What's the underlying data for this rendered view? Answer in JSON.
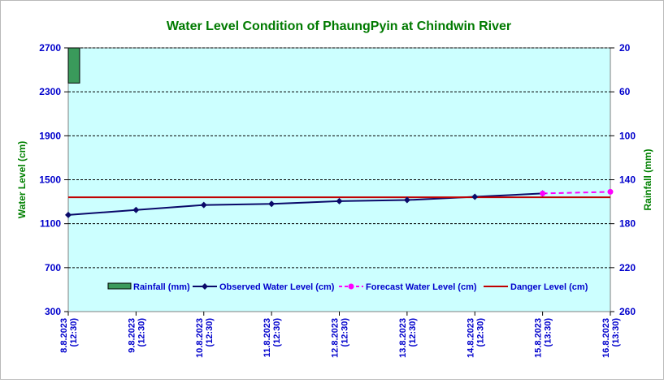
{
  "chart_data": {
    "type": "line",
    "title": "Water Level Condition of PhaungPyin at Chindwin River",
    "ylabel_left": "Water Level (cm)",
    "ylabel_right": "Rainfall (mm)",
    "xlabel": "",
    "ylim_left": [
      300,
      2700
    ],
    "yticks_left": [
      "2700",
      "2300",
      "1900",
      "1500",
      "1100",
      "700",
      "300"
    ],
    "ylim_right": [
      20,
      260
    ],
    "right_axis_inverted": true,
    "yticks_right": [
      "20",
      "60",
      "100",
      "140",
      "180",
      "220",
      "260"
    ],
    "categories": [
      "8.8.2023 (12:30)",
      "9.8.2023 (12:30)",
      "10.8.2023 (12:30)",
      "11.8.2023 (12:30)",
      "12.8.2023 (12:30)",
      "13.8.2023 (12:30)",
      "14.8.2023 (12:30)",
      "15.8.2023 (13:30)",
      "16.8.2023 (13:30)"
    ],
    "x_tick_lines": [
      [
        "8.8.2023",
        "(12:30)"
      ],
      [
        "9.8.2023",
        "(12:30)"
      ],
      [
        "10.8.2023",
        "(12:30)"
      ],
      [
        "11.8.2023",
        "(12:30)"
      ],
      [
        "12.8.2023",
        "(12:30)"
      ],
      [
        "13.8.2023",
        "(12:30)"
      ],
      [
        "14.8.2023",
        "(12:30)"
      ],
      [
        "15.8.2023",
        "(13:30)"
      ],
      [
        "16.8.2023",
        "(13:30)"
      ]
    ],
    "grid": true,
    "legend_position": "bottom-inside",
    "series": [
      {
        "name": "Rainfall (mm)",
        "kind": "bar",
        "axis": "right",
        "color": "#3a9a5b",
        "values": [
          52,
          null,
          null,
          null,
          null,
          null,
          null,
          null,
          null
        ]
      },
      {
        "name": "Observed Water Level (cm)",
        "kind": "line",
        "axis": "left",
        "color": "#0a0a6a",
        "marker": "diamond",
        "values": [
          1180,
          1225,
          1270,
          1280,
          1305,
          1315,
          1345,
          1375,
          null
        ]
      },
      {
        "name": "Forecast Water Level (cm)",
        "kind": "line-dashed",
        "axis": "left",
        "color": "#ff00ff",
        "marker": "circle",
        "values": [
          null,
          null,
          null,
          null,
          null,
          null,
          null,
          1375,
          1390
        ]
      },
      {
        "name": "Danger Level (cm)",
        "kind": "line",
        "axis": "left",
        "color": "#c00000",
        "values": [
          1340,
          1340,
          1340,
          1340,
          1340,
          1340,
          1340,
          1340,
          1340
        ]
      }
    ],
    "colors": {
      "plot_background": "#ccffff",
      "title": "#007a00",
      "left_axis_title": "#008000",
      "right_axis_title": "#008000",
      "ticks": "#0000cc"
    }
  }
}
